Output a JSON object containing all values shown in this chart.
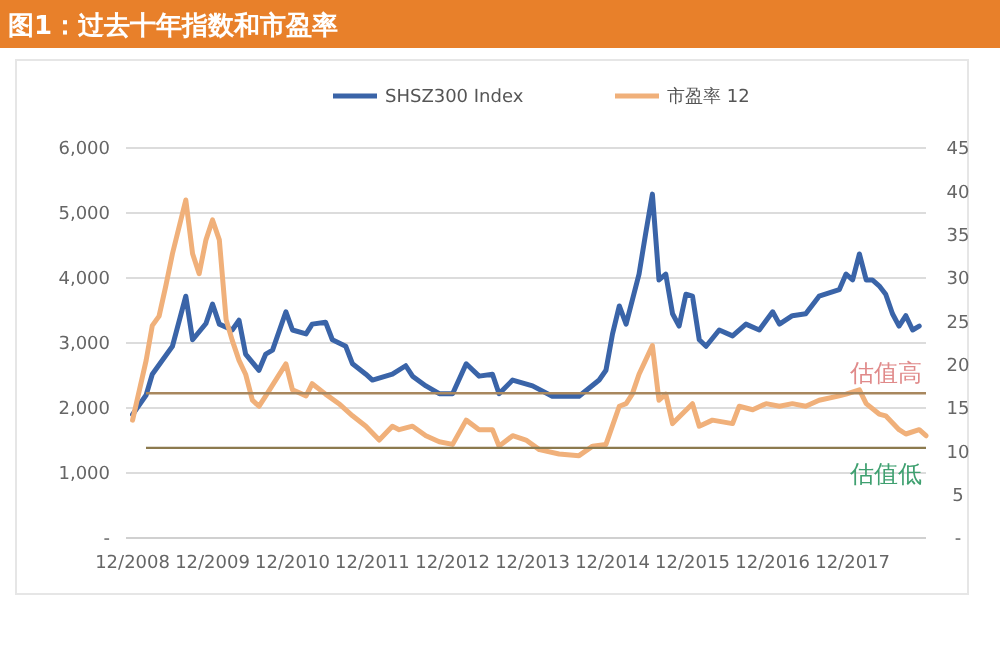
{
  "chart_data": {
    "type": "line",
    "title": "图1：过去十年指数和市盈率",
    "xlim": [
      "2008-11",
      "2018-11"
    ],
    "xticks": [
      {
        "value": "2008-12",
        "label": "12/2008"
      },
      {
        "value": "2009-12",
        "label": "12/2009"
      },
      {
        "value": "2010-12",
        "label": "12/2010"
      },
      {
        "value": "2011-12",
        "label": "12/2011"
      },
      {
        "value": "2012-12",
        "label": "12/2012"
      },
      {
        "value": "2013-12",
        "label": "12/2013"
      },
      {
        "value": "2014-12",
        "label": "12/2014"
      },
      {
        "value": "2015-12",
        "label": "12/2015"
      },
      {
        "value": "2016-12",
        "label": "12/2016"
      },
      {
        "value": "2017-12",
        "label": "12/2017"
      }
    ],
    "ylim": [
      0,
      6000
    ],
    "yticks": [
      {
        "value": 0,
        "label": "-"
      },
      {
        "value": 1000,
        "label": "1,000"
      },
      {
        "value": 2000,
        "label": "2,000"
      },
      {
        "value": 3000,
        "label": "3,000"
      },
      {
        "value": 4000,
        "label": "4,000"
      },
      {
        "value": 5000,
        "label": "5,000"
      },
      {
        "value": 6000,
        "label": "6,000"
      }
    ],
    "y2lim": [
      0,
      45
    ],
    "y2ticks": [
      {
        "value": 0,
        "label": "-"
      },
      5,
      10,
      15,
      20,
      25,
      30,
      35,
      40,
      45
    ],
    "grid": "y",
    "legend": "top",
    "series": [
      {
        "name": "SHSZ300 Index",
        "color": "#3a64a8",
        "x": [
          "2008-12",
          "2009-02",
          "2009-03",
          "2009-06",
          "2009-08",
          "2009-09",
          "2009-11",
          "2009-12",
          "2010-01",
          "2010-03",
          "2010-04",
          "2010-05",
          "2010-07",
          "2010-08",
          "2010-09",
          "2010-11",
          "2010-12",
          "2011-02",
          "2011-03",
          "2011-05",
          "2011-06",
          "2011-08",
          "2011-09",
          "2011-11",
          "2011-12",
          "2012-03",
          "2012-05",
          "2012-06",
          "2012-08",
          "2012-10",
          "2012-12",
          "2013-02",
          "2013-04",
          "2013-06",
          "2013-07",
          "2013-09",
          "2013-12",
          "2014-03",
          "2014-07",
          "2014-10",
          "2014-11",
          "2014-12",
          "2015-01",
          "2015-02",
          "2015-04",
          "2015-05",
          "2015-06",
          "2015-07",
          "2015-08",
          "2015-09",
          "2015-10",
          "2015-11",
          "2015-12",
          "2016-01",
          "2016-02",
          "2016-04",
          "2016-06",
          "2016-08",
          "2016-10",
          "2016-12",
          "2017-01",
          "2017-03",
          "2017-05",
          "2017-07",
          "2017-10",
          "2017-11",
          "2017-12",
          "2018-01",
          "2018-02",
          "2018-03",
          "2018-04",
          "2018-05",
          "2018-06",
          "2018-07",
          "2018-08",
          "2018-09",
          "2018-10"
        ],
        "values": [
          1900,
          2200,
          2520,
          2950,
          3720,
          3050,
          3300,
          3600,
          3290,
          3200,
          3350,
          2830,
          2580,
          2830,
          2890,
          3480,
          3200,
          3140,
          3290,
          3320,
          3050,
          2950,
          2680,
          2520,
          2430,
          2520,
          2650,
          2490,
          2340,
          2220,
          2220,
          2680,
          2490,
          2520,
          2220,
          2430,
          2340,
          2180,
          2180,
          2430,
          2580,
          3140,
          3570,
          3290,
          4060,
          4680,
          5290,
          3970,
          4060,
          3450,
          3260,
          3750,
          3720,
          3050,
          2950,
          3200,
          3110,
          3290,
          3200,
          3480,
          3290,
          3420,
          3450,
          3720,
          3820,
          4060,
          3970,
          4370,
          3970,
          3970,
          3880,
          3750,
          3450,
          3260,
          3420,
          3200,
          3260
        ]
      },
      {
        "name": "市盈率 12",
        "color": "#f0b07a",
        "axis": "y2",
        "x": [
          "2008-12",
          "2009-02",
          "2009-03",
          "2009-04",
          "2009-05",
          "2009-06",
          "2009-08",
          "2009-09",
          "2009-10",
          "2009-11",
          "2009-12",
          "2010-01",
          "2010-02",
          "2010-03",
          "2010-04",
          "2010-05",
          "2010-06",
          "2010-07",
          "2010-08",
          "2010-11",
          "2010-12",
          "2011-02",
          "2011-03",
          "2011-05",
          "2011-07",
          "2011-09",
          "2011-11",
          "2012-01",
          "2012-03",
          "2012-04",
          "2012-06",
          "2012-08",
          "2012-10",
          "2012-12",
          "2013-02",
          "2013-04",
          "2013-06",
          "2013-07",
          "2013-09",
          "2013-11",
          "2014-01",
          "2014-04",
          "2014-07",
          "2014-09",
          "2014-11",
          "2015-01",
          "2015-02",
          "2015-03",
          "2015-04",
          "2015-06",
          "2015-07",
          "2015-08",
          "2015-09",
          "2015-12",
          "2016-01",
          "2016-03",
          "2016-06",
          "2016-07",
          "2016-09",
          "2016-11",
          "2017-01",
          "2017-03",
          "2017-05",
          "2017-07",
          "2017-10",
          "2017-11",
          "2018-01",
          "2018-02",
          "2018-04",
          "2018-05",
          "2018-07",
          "2018-08",
          "2018-10",
          "2018-11"
        ],
        "values": [
          13.6,
          20.5,
          24.5,
          25.6,
          29,
          32.8,
          39,
          32.8,
          30.5,
          34.4,
          36.7,
          34.4,
          25.2,
          22.8,
          20.5,
          18.9,
          15.9,
          15.2,
          16.4,
          20.1,
          17.1,
          16.4,
          17.8,
          16.6,
          15.5,
          14.1,
          12.9,
          11.3,
          12.9,
          12.5,
          12.9,
          11.8,
          11.1,
          10.8,
          13.6,
          12.5,
          12.5,
          10.6,
          11.8,
          11.3,
          10.2,
          9.7,
          9.5,
          10.6,
          10.8,
          15.2,
          15.5,
          16.6,
          18.9,
          22.2,
          15.9,
          16.6,
          13.2,
          15.5,
          12.9,
          13.6,
          13.2,
          15.2,
          14.8,
          15.5,
          15.2,
          15.5,
          15.2,
          15.9,
          16.4,
          16.6,
          17.1,
          15.5,
          14.3,
          14.1,
          12.5,
          12,
          12.5,
          11.8
        ]
      }
    ],
    "ref_lines": [
      {
        "axis": "y2",
        "value": 16.7,
        "label": "估值高",
        "color": "#a8875e"
      },
      {
        "axis": "y2",
        "value": 10.4,
        "label": "估值低",
        "color": "#8c7a4e"
      }
    ]
  }
}
